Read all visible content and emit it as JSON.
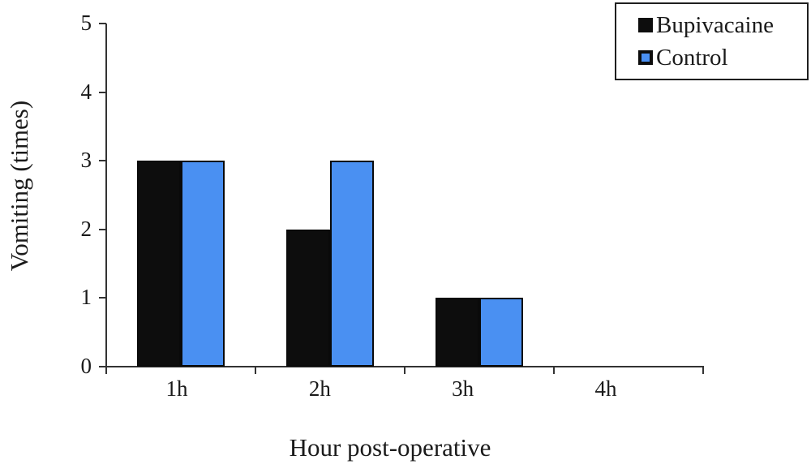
{
  "figure": {
    "background": "#ffffff",
    "text_color": "#1a1a1a",
    "axis_color": "#333333"
  },
  "legend": {
    "position": "top-right",
    "items": [
      {
        "label": "Bupivacaine",
        "swatch_icon": "black-square-icon",
        "color": "#0d0d0d"
      },
      {
        "label": "Control",
        "swatch_icon": "blue-square-black-border-icon",
        "color": "#4a90f2"
      }
    ]
  },
  "chart_data": {
    "type": "bar",
    "title": "",
    "xlabel": "Hour post-operative",
    "ylabel": "Vomiting (times)",
    "categories": [
      "1h",
      "2h",
      "3h",
      "4h"
    ],
    "series": [
      {
        "name": "Bupivacaine",
        "color": "#0d0d0d",
        "values": [
          3,
          2,
          1,
          0
        ]
      },
      {
        "name": "Control",
        "color": "#4a90f2",
        "values": [
          3,
          3,
          1,
          0
        ]
      }
    ],
    "ylim": [
      0,
      5
    ],
    "yticks": [
      0,
      1,
      2,
      3,
      4,
      5
    ],
    "grid": false,
    "legend_position": "top-right"
  }
}
